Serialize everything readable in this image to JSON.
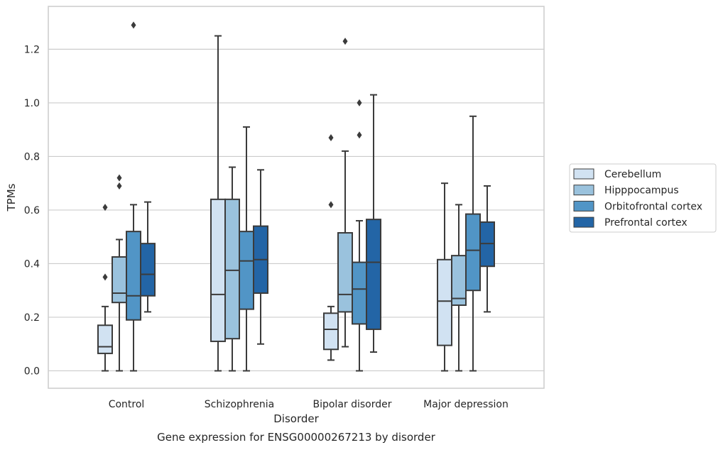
{
  "chart_data": {
    "type": "box",
    "title": "",
    "caption": "Gene expression for ENSG00000267213 by disorder",
    "xlabel": "Disorder",
    "ylabel": "TPMs",
    "ylim": [
      -0.065,
      1.36
    ],
    "yticks": [
      "0.0",
      "0.2",
      "0.4",
      "0.6",
      "0.8",
      "1.0",
      "1.2"
    ],
    "grid": "horizontal",
    "legend_position": "right",
    "categories": [
      "Control",
      "Schizophrenia",
      "Bipolar disorder",
      "Major depression"
    ],
    "series": [
      {
        "name": "Cerebellum",
        "color": "#d1e2f2",
        "boxes": [
          {
            "whisker_low": 0.0,
            "q1": 0.065,
            "median": 0.09,
            "q3": 0.17,
            "whisker_high": 0.24,
            "outliers": [
              0.35,
              0.61
            ]
          },
          {
            "whisker_low": 0.0,
            "q1": 0.11,
            "median": 0.285,
            "q3": 0.64,
            "whisker_high": 1.25,
            "outliers": []
          },
          {
            "whisker_low": 0.04,
            "q1": 0.08,
            "median": 0.155,
            "q3": 0.215,
            "whisker_high": 0.24,
            "outliers": [
              0.62,
              0.87
            ]
          },
          {
            "whisker_low": 0.0,
            "q1": 0.095,
            "median": 0.26,
            "q3": 0.415,
            "whisker_high": 0.7,
            "outliers": []
          }
        ]
      },
      {
        "name": "Hipppocampus",
        "color": "#9ac2dd",
        "boxes": [
          {
            "whisker_low": 0.0,
            "q1": 0.255,
            "median": 0.29,
            "q3": 0.425,
            "whisker_high": 0.49,
            "outliers": [
              0.69,
              0.72
            ]
          },
          {
            "whisker_low": 0.0,
            "q1": 0.12,
            "median": 0.375,
            "q3": 0.64,
            "whisker_high": 0.76,
            "outliers": []
          },
          {
            "whisker_low": 0.09,
            "q1": 0.22,
            "median": 0.285,
            "q3": 0.515,
            "whisker_high": 0.82,
            "outliers": [
              1.23
            ]
          },
          {
            "whisker_low": 0.0,
            "q1": 0.245,
            "median": 0.27,
            "q3": 0.43,
            "whisker_high": 0.62,
            "outliers": []
          }
        ]
      },
      {
        "name": "Orbitofrontal cortex",
        "color": "#5195c6",
        "boxes": [
          {
            "whisker_low": 0.0,
            "q1": 0.19,
            "median": 0.28,
            "q3": 0.52,
            "whisker_high": 0.62,
            "outliers": [
              1.29
            ]
          },
          {
            "whisker_low": 0.0,
            "q1": 0.23,
            "median": 0.41,
            "q3": 0.52,
            "whisker_high": 0.91,
            "outliers": []
          },
          {
            "whisker_low": 0.0,
            "q1": 0.175,
            "median": 0.305,
            "q3": 0.405,
            "whisker_high": 0.56,
            "outliers": [
              0.88,
              1.0
            ]
          },
          {
            "whisker_low": 0.0,
            "q1": 0.3,
            "median": 0.45,
            "q3": 0.585,
            "whisker_high": 0.95,
            "outliers": []
          }
        ]
      },
      {
        "name": "Prefrontal cortex",
        "color": "#2365a6",
        "boxes": [
          {
            "whisker_low": 0.22,
            "q1": 0.28,
            "median": 0.36,
            "q3": 0.475,
            "whisker_high": 0.63,
            "outliers": []
          },
          {
            "whisker_low": 0.1,
            "q1": 0.29,
            "median": 0.415,
            "q3": 0.54,
            "whisker_high": 0.75,
            "outliers": []
          },
          {
            "whisker_low": 0.07,
            "q1": 0.155,
            "median": 0.405,
            "q3": 0.565,
            "whisker_high": 1.03,
            "outliers": []
          },
          {
            "whisker_low": 0.22,
            "q1": 0.39,
            "median": 0.475,
            "q3": 0.555,
            "whisker_high": 0.69,
            "outliers": []
          }
        ]
      }
    ]
  }
}
